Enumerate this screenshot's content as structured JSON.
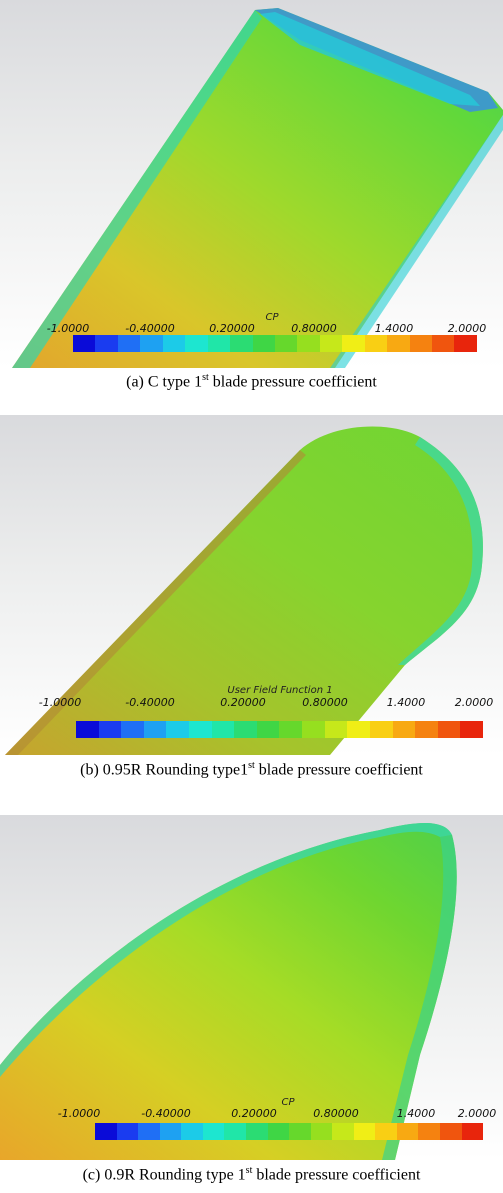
{
  "colorbar": {
    "stops": [
      "#0a0bd8",
      "#1a3cf0",
      "#1f6ff5",
      "#1ea1f2",
      "#1ccbe8",
      "#1de6d0",
      "#20e6a8",
      "#2bdc73",
      "#3fd645",
      "#66d82c",
      "#96df1f",
      "#c6e81a",
      "#f0ee16",
      "#f9cf14",
      "#f8a912",
      "#f58210",
      "#f0550e",
      "#e8250c"
    ],
    "ticks": [
      "-1.0000",
      "-0.40000",
      "0.20000",
      "0.80000",
      "1.4000",
      "2.0000"
    ]
  },
  "panels": [
    {
      "colorbar_title": "CP",
      "caption": {
        "prefix": "(a)  C type  1",
        "sup": "st",
        "suffix": "  blade  pressure  coefficient"
      }
    },
    {
      "colorbar_title": "User Field Function 1",
      "caption": {
        "prefix": "(b)  0.95R  Rounding  type1",
        "sup": "st",
        "suffix": "  blade  pressure  coefficient"
      }
    },
    {
      "colorbar_title": "CP",
      "caption": {
        "prefix": "(c)  0.9R  Rounding  type  1",
        "sup": "st",
        "suffix": "  blade  pressure  coefficient"
      }
    }
  ]
}
